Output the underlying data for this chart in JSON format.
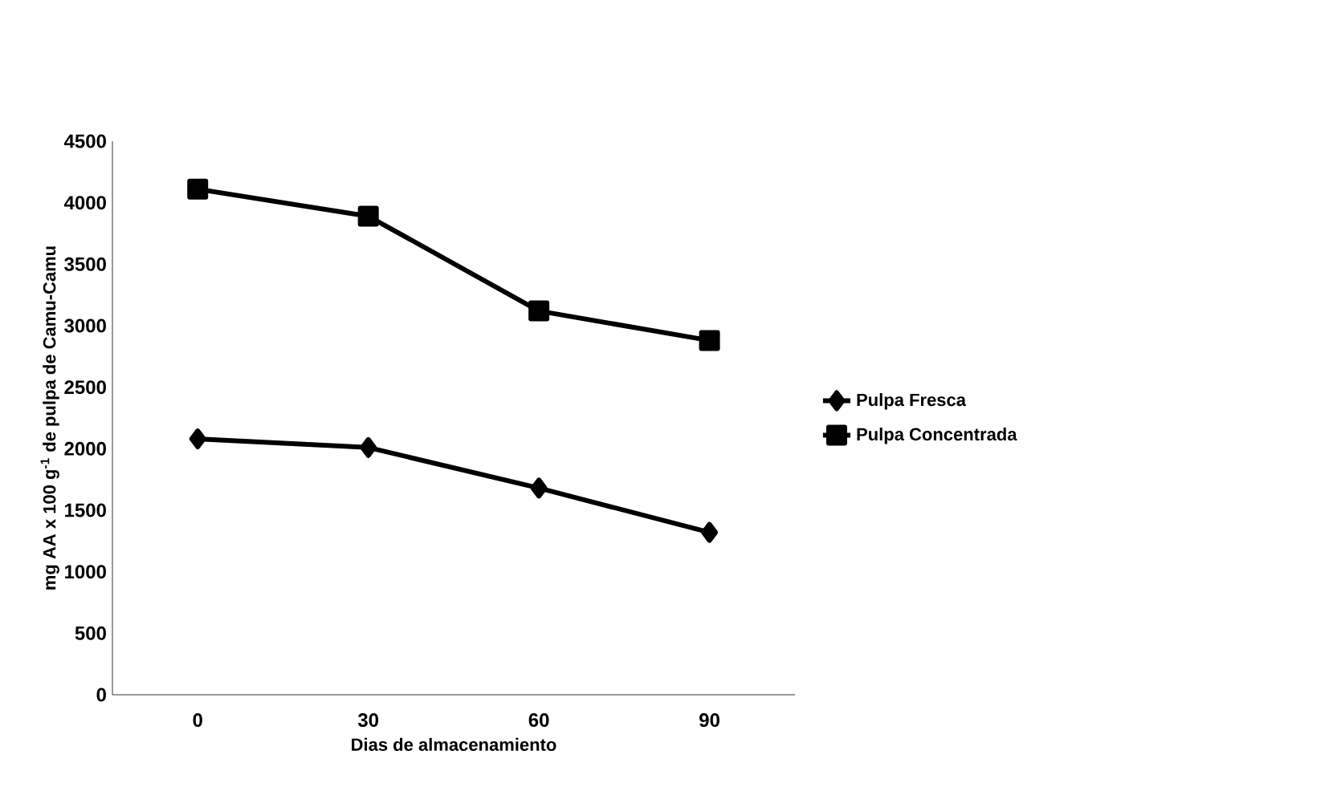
{
  "chart_data": {
    "type": "line",
    "xlabel": "Dias de almacenamiento",
    "ylabel": "mg AA x 100 g$^{-1}$ de pulpa de Camu-Camu",
    "categories": [
      "0",
      "30",
      "60",
      "90"
    ],
    "series": [
      {
        "name": "Pulpa Fresca",
        "color": "#000000",
        "marker": "diamond",
        "values": [
          2080,
          2010,
          1680,
          1320
        ]
      },
      {
        "name": "Pulpa Concentrada",
        "color": "#000000",
        "marker": "square",
        "values": [
          4110,
          3890,
          3120,
          2880
        ]
      }
    ],
    "ylim": [
      0,
      4500
    ],
    "yticks": [
      0,
      500,
      1000,
      1500,
      2000,
      2500,
      3000,
      3500,
      4000,
      4500
    ],
    "grid": false,
    "legend": "right",
    "line_style": "solid"
  }
}
